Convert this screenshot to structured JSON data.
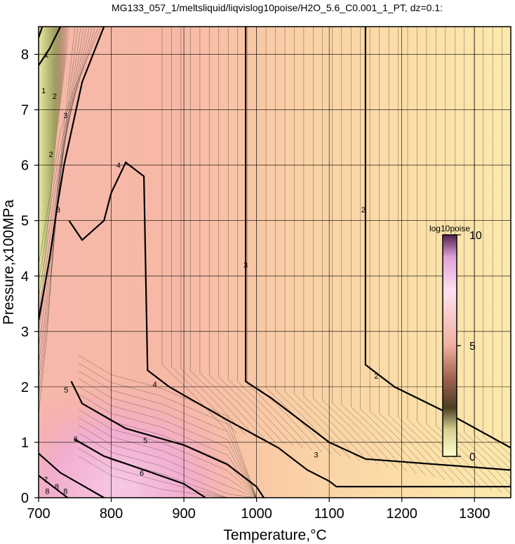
{
  "chart_data": {
    "type": "heatmap",
    "title": "MG133_057_1/meltsliquid/liqvislog10poise/H2O_5.6_C0.001_1_PT, dz=0.1:",
    "xlabel": "Temperature,°C",
    "ylabel": "Pressure,x100MPa",
    "xlim": [
      700,
      1350
    ],
    "ylim": [
      0,
      8.5
    ],
    "x_ticks": [
      "700",
      "800",
      "900",
      "1000",
      "1100",
      "1200",
      "1300"
    ],
    "y_ticks": [
      "0",
      "1",
      "2",
      "3",
      "4",
      "5",
      "6",
      "7",
      "8"
    ],
    "grid": true,
    "colorbar": {
      "label": "log10poise",
      "ticks": [
        "0",
        "5",
        "10"
      ],
      "range": [
        0,
        10
      ],
      "placement": "inside-right"
    },
    "contour_interval": 0.1,
    "major_contours": [
      {
        "level": 2,
        "label": "2",
        "points": [
          [
            1150,
            8.5
          ],
          [
            1150,
            2.4
          ],
          [
            1190,
            2.0
          ],
          [
            1260,
            1.55
          ],
          [
            1350,
            0.9
          ]
        ]
      },
      {
        "level": 3,
        "label": "3",
        "points": [
          [
            985,
            8.5
          ],
          [
            985,
            2.1
          ],
          [
            1020,
            1.8
          ],
          [
            1100,
            1.0
          ],
          [
            1150,
            0.7
          ],
          [
            1350,
            0.5
          ]
        ]
      },
      {
        "level": 4,
        "label": "4",
        "points": [
          [
            800,
            5.5
          ],
          [
            820,
            6.05
          ],
          [
            845,
            5.8
          ],
          [
            850,
            2.3
          ],
          [
            880,
            2.0
          ],
          [
            960,
            1.4
          ],
          [
            1030,
            0.9
          ],
          [
            1070,
            0.5
          ],
          [
            1100,
            0.3
          ],
          [
            1110,
            0.2
          ],
          [
            1350,
            0.2
          ]
        ]
      },
      {
        "level": 4,
        "label": "4",
        "points": [
          [
            742,
            5.0
          ],
          [
            760,
            4.65
          ],
          [
            790,
            5.0
          ],
          [
            800,
            5.5
          ]
        ]
      },
      {
        "level": 5,
        "label": "5",
        "points": [
          [
            745,
            2.1
          ],
          [
            760,
            1.7
          ],
          [
            820,
            1.25
          ],
          [
            900,
            0.95
          ],
          [
            960,
            0.6
          ],
          [
            1000,
            0.2
          ],
          [
            1010,
            0.0
          ]
        ]
      },
      {
        "level": 6,
        "label": "6",
        "points": [
          [
            750,
            1.05
          ],
          [
            790,
            0.75
          ],
          [
            850,
            0.48
          ],
          [
            900,
            0.25
          ],
          [
            930,
            0.0
          ]
        ]
      },
      {
        "level": 3,
        "label": "3",
        "points": [
          [
            700,
            3.2
          ],
          [
            715,
            4.3
          ],
          [
            725,
            5.2
          ],
          [
            735,
            6.0
          ],
          [
            760,
            7.5
          ],
          [
            790,
            8.5
          ]
        ]
      },
      {
        "level": 2,
        "label": "2",
        "points": [
          [
            700,
            7.8
          ],
          [
            715,
            8.1
          ],
          [
            730,
            8.5
          ]
        ]
      },
      {
        "level": 1,
        "label": "1",
        "points": [
          [
            700,
            8.3
          ],
          [
            705,
            8.5
          ]
        ]
      },
      {
        "level": 7,
        "label": "7",
        "points": [
          [
            700,
            0.8
          ],
          [
            730,
            0.45
          ],
          [
            770,
            0.15
          ],
          [
            790,
            0.0
          ]
        ]
      },
      {
        "level": 8,
        "label": "8",
        "points": [
          [
            700,
            0.4
          ],
          [
            720,
            0.2
          ],
          [
            740,
            0.0
          ]
        ]
      }
    ],
    "contour_labels": [
      {
        "x": 1147,
        "y": 5.2,
        "label": "2"
      },
      {
        "x": 1165,
        "y": 2.2,
        "label": "2"
      },
      {
        "x": 985,
        "y": 4.2,
        "label": "3"
      },
      {
        "x": 1082,
        "y": 0.78,
        "label": "3"
      },
      {
        "x": 810,
        "y": 6.0,
        "label": "4"
      },
      {
        "x": 860,
        "y": 2.05,
        "label": "4"
      },
      {
        "x": 847,
        "y": 1.04,
        "label": "5"
      },
      {
        "x": 738,
        "y": 1.95,
        "label": "5"
      },
      {
        "x": 842,
        "y": 0.45,
        "label": "6"
      },
      {
        "x": 751,
        "y": 1.06,
        "label": "6"
      },
      {
        "x": 710,
        "y": 0.33,
        "label": "7"
      },
      {
        "x": 725,
        "y": 0.2,
        "label": "8"
      },
      {
        "x": 712,
        "y": 0.12,
        "label": "8"
      },
      {
        "x": 737,
        "y": 0.12,
        "label": "8"
      },
      {
        "x": 727,
        "y": 5.2,
        "label": "3"
      },
      {
        "x": 737,
        "y": 6.9,
        "label": "3"
      },
      {
        "x": 722,
        "y": 7.25,
        "label": "2"
      },
      {
        "x": 717,
        "y": 6.2,
        "label": "2"
      },
      {
        "x": 711,
        "y": 8.0,
        "label": "1"
      },
      {
        "x": 707,
        "y": 7.35,
        "label": "1"
      }
    ]
  }
}
